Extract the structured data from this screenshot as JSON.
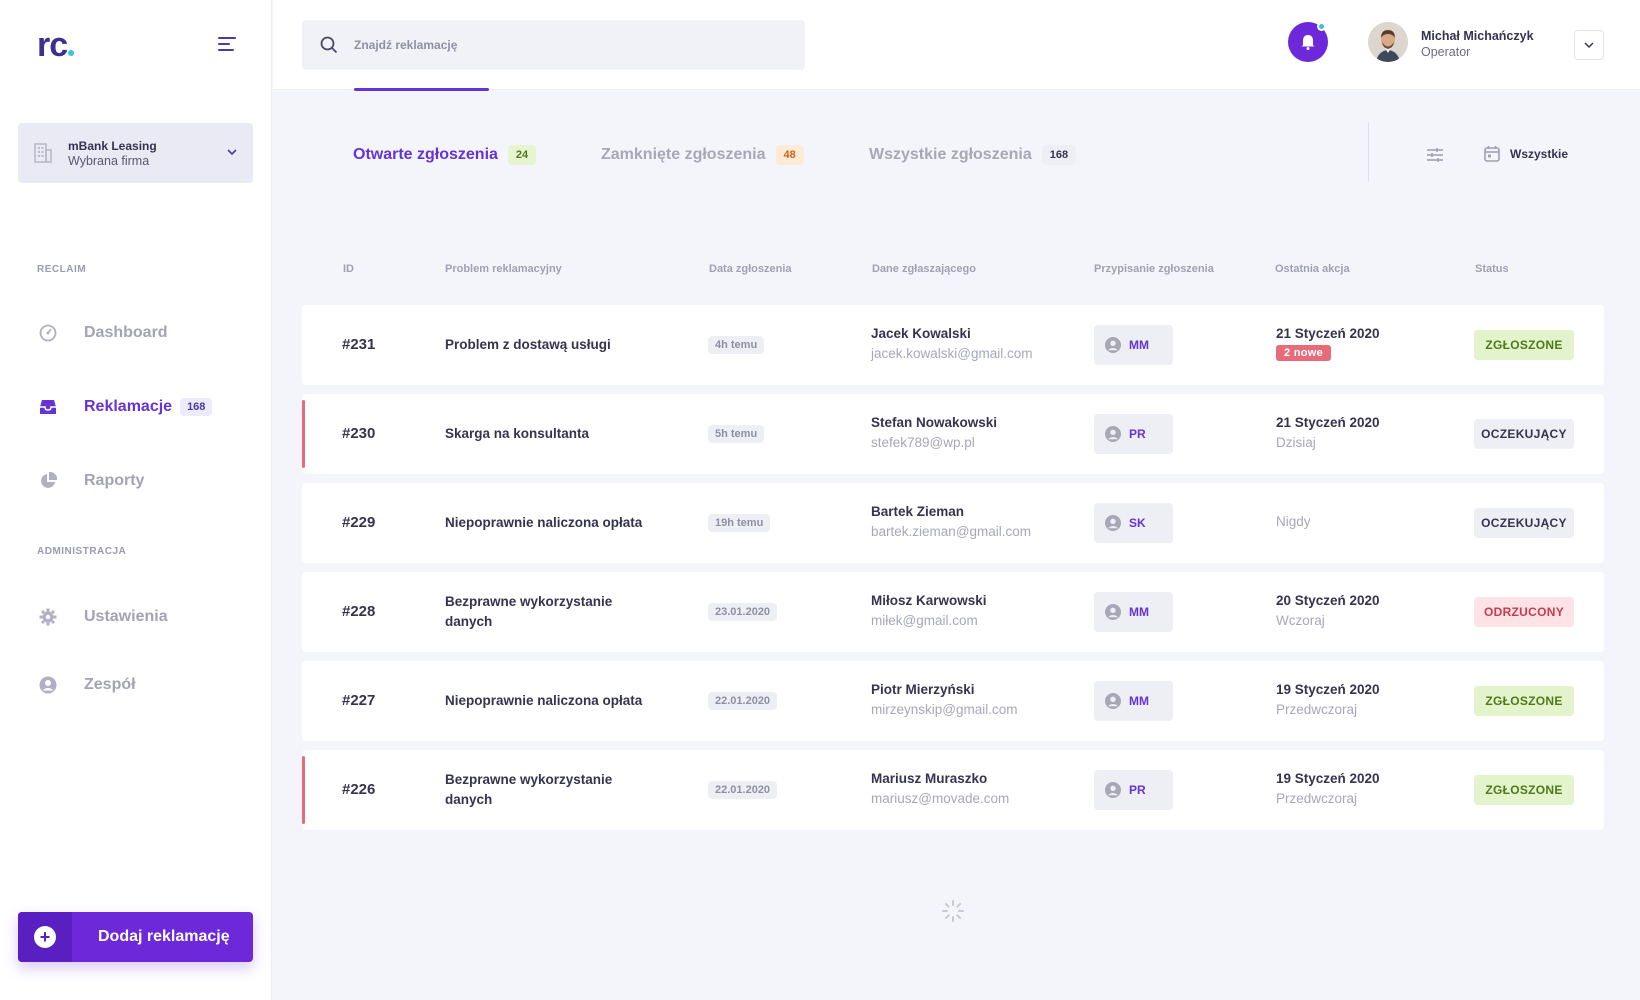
{
  "app": {
    "logo": "rc"
  },
  "company": {
    "name": "mBank Leasing",
    "subtitle": "Wybrana firma"
  },
  "sidebar": {
    "section_main": "RECLAIM",
    "section_admin": "ADMINISTRACJA",
    "items": [
      {
        "label": "Dashboard",
        "icon": "dashboard-icon"
      },
      {
        "label": "Reklamacje",
        "icon": "inbox-icon",
        "badge": "168",
        "active": true
      },
      {
        "label": "Raporty",
        "icon": "pie-chart-icon"
      },
      {
        "label": "Ustawienia",
        "icon": "gear-icon"
      },
      {
        "label": "Zespół",
        "icon": "user-circle-icon"
      }
    ],
    "add_button": "Dodaj reklamację"
  },
  "search": {
    "placeholder": "Znajdź reklamację",
    "value": ""
  },
  "user": {
    "name": "Michał Michańczyk",
    "role": "Operator"
  },
  "tabs": [
    {
      "label": "Otwarte zgłoszenia",
      "count": "24",
      "active": true,
      "badge_bg": "#e6f4cf",
      "badge_fg": "#4f7a1a"
    },
    {
      "label": "Zamknięte zgłoszenia",
      "count": "48",
      "active": false,
      "badge_bg": "#fdebd8",
      "badge_fg": "#c9661a"
    },
    {
      "label": "Wszystkie zgłoszenia",
      "count": "168",
      "active": false,
      "badge_bg": "#eeeff5",
      "badge_fg": "#36334f"
    }
  ],
  "date_filter": "Wszystkie",
  "table": {
    "headers": [
      "ID",
      "Problem reklamacyjny",
      "Data zgłoszenia",
      "Dane zgłaszającego",
      "Przypisanie zgłoszenia",
      "Ostatnia akcja",
      "Status"
    ],
    "rows": [
      {
        "id": "#231",
        "problem": "Problem z dostawą usługi",
        "date": "4h temu",
        "name": "Jacek Kowalski",
        "email": "jacek.kowalski@gmail.com",
        "assignee": "MM",
        "last_action": "21 Styczeń 2020",
        "last_action_sub": "",
        "new_badge": "2 nowe",
        "status": "ZGŁOSZONE",
        "flag": false
      },
      {
        "id": "#230",
        "problem": "Skarga na konsultanta",
        "date": "5h temu",
        "name": "Stefan Nowakowski",
        "email": "stefek789@wp.pl",
        "assignee": "PR",
        "last_action": "21 Styczeń 2020",
        "last_action_sub": "Dzisiaj",
        "new_badge": "",
        "status": "OCZEKUJĄCY",
        "flag": true
      },
      {
        "id": "#229",
        "problem": "Niepoprawnie naliczona opłata",
        "date": "19h temu",
        "name": "Bartek Zieman",
        "email": "bartek.zieman@gmail.com",
        "assignee": "SK",
        "last_action": "Nigdy",
        "last_action_sub": "",
        "new_badge": "",
        "status": "OCZEKUJĄCY",
        "flag": false,
        "muted_action": true
      },
      {
        "id": "#228",
        "problem": "Bezprawne wykorzystanie danych",
        "date": "23.01.2020",
        "name": "Miłosz Karwowski",
        "email": "miłek@gmail.com",
        "assignee": "MM",
        "last_action": "20 Styczeń 2020",
        "last_action_sub": "Wczoraj",
        "new_badge": "",
        "status": "ODRZUCONY",
        "flag": false
      },
      {
        "id": "#227",
        "problem": "Niepoprawnie naliczona opłata",
        "date": "22.01.2020",
        "name": "Piotr Mierzyński",
        "email": "mirzeynskip@gmail.com",
        "assignee": "MM",
        "last_action": "19 Styczeń 2020",
        "last_action_sub": "Przedwczoraj",
        "new_badge": "",
        "status": "ZGŁOSZONE",
        "flag": false
      },
      {
        "id": "#226",
        "problem": "Bezprawne wykorzystanie danych",
        "date": "22.01.2020",
        "name": "Mariusz Muraszko",
        "email": "mariusz@movade.com",
        "assignee": "PR",
        "last_action": "19 Styczeń 2020",
        "last_action_sub": "Przedwczoraj",
        "new_badge": "",
        "status": "ZGŁOSZONE",
        "flag": true
      }
    ]
  },
  "status_colors": {
    "ZGŁOSZONE": {
      "bg": "#e3f3cb",
      "fg": "#4f7a1a"
    },
    "OCZEKUJĄCY": {
      "bg": "#eeeff5",
      "fg": "#36334f"
    },
    "ODRZUCONY": {
      "bg": "#fde3e6",
      "fg": "#c93a4c"
    }
  },
  "colors": {
    "accent": "#6533d6",
    "primary_button": "#6d28d9",
    "flag": "#e86b7b"
  }
}
